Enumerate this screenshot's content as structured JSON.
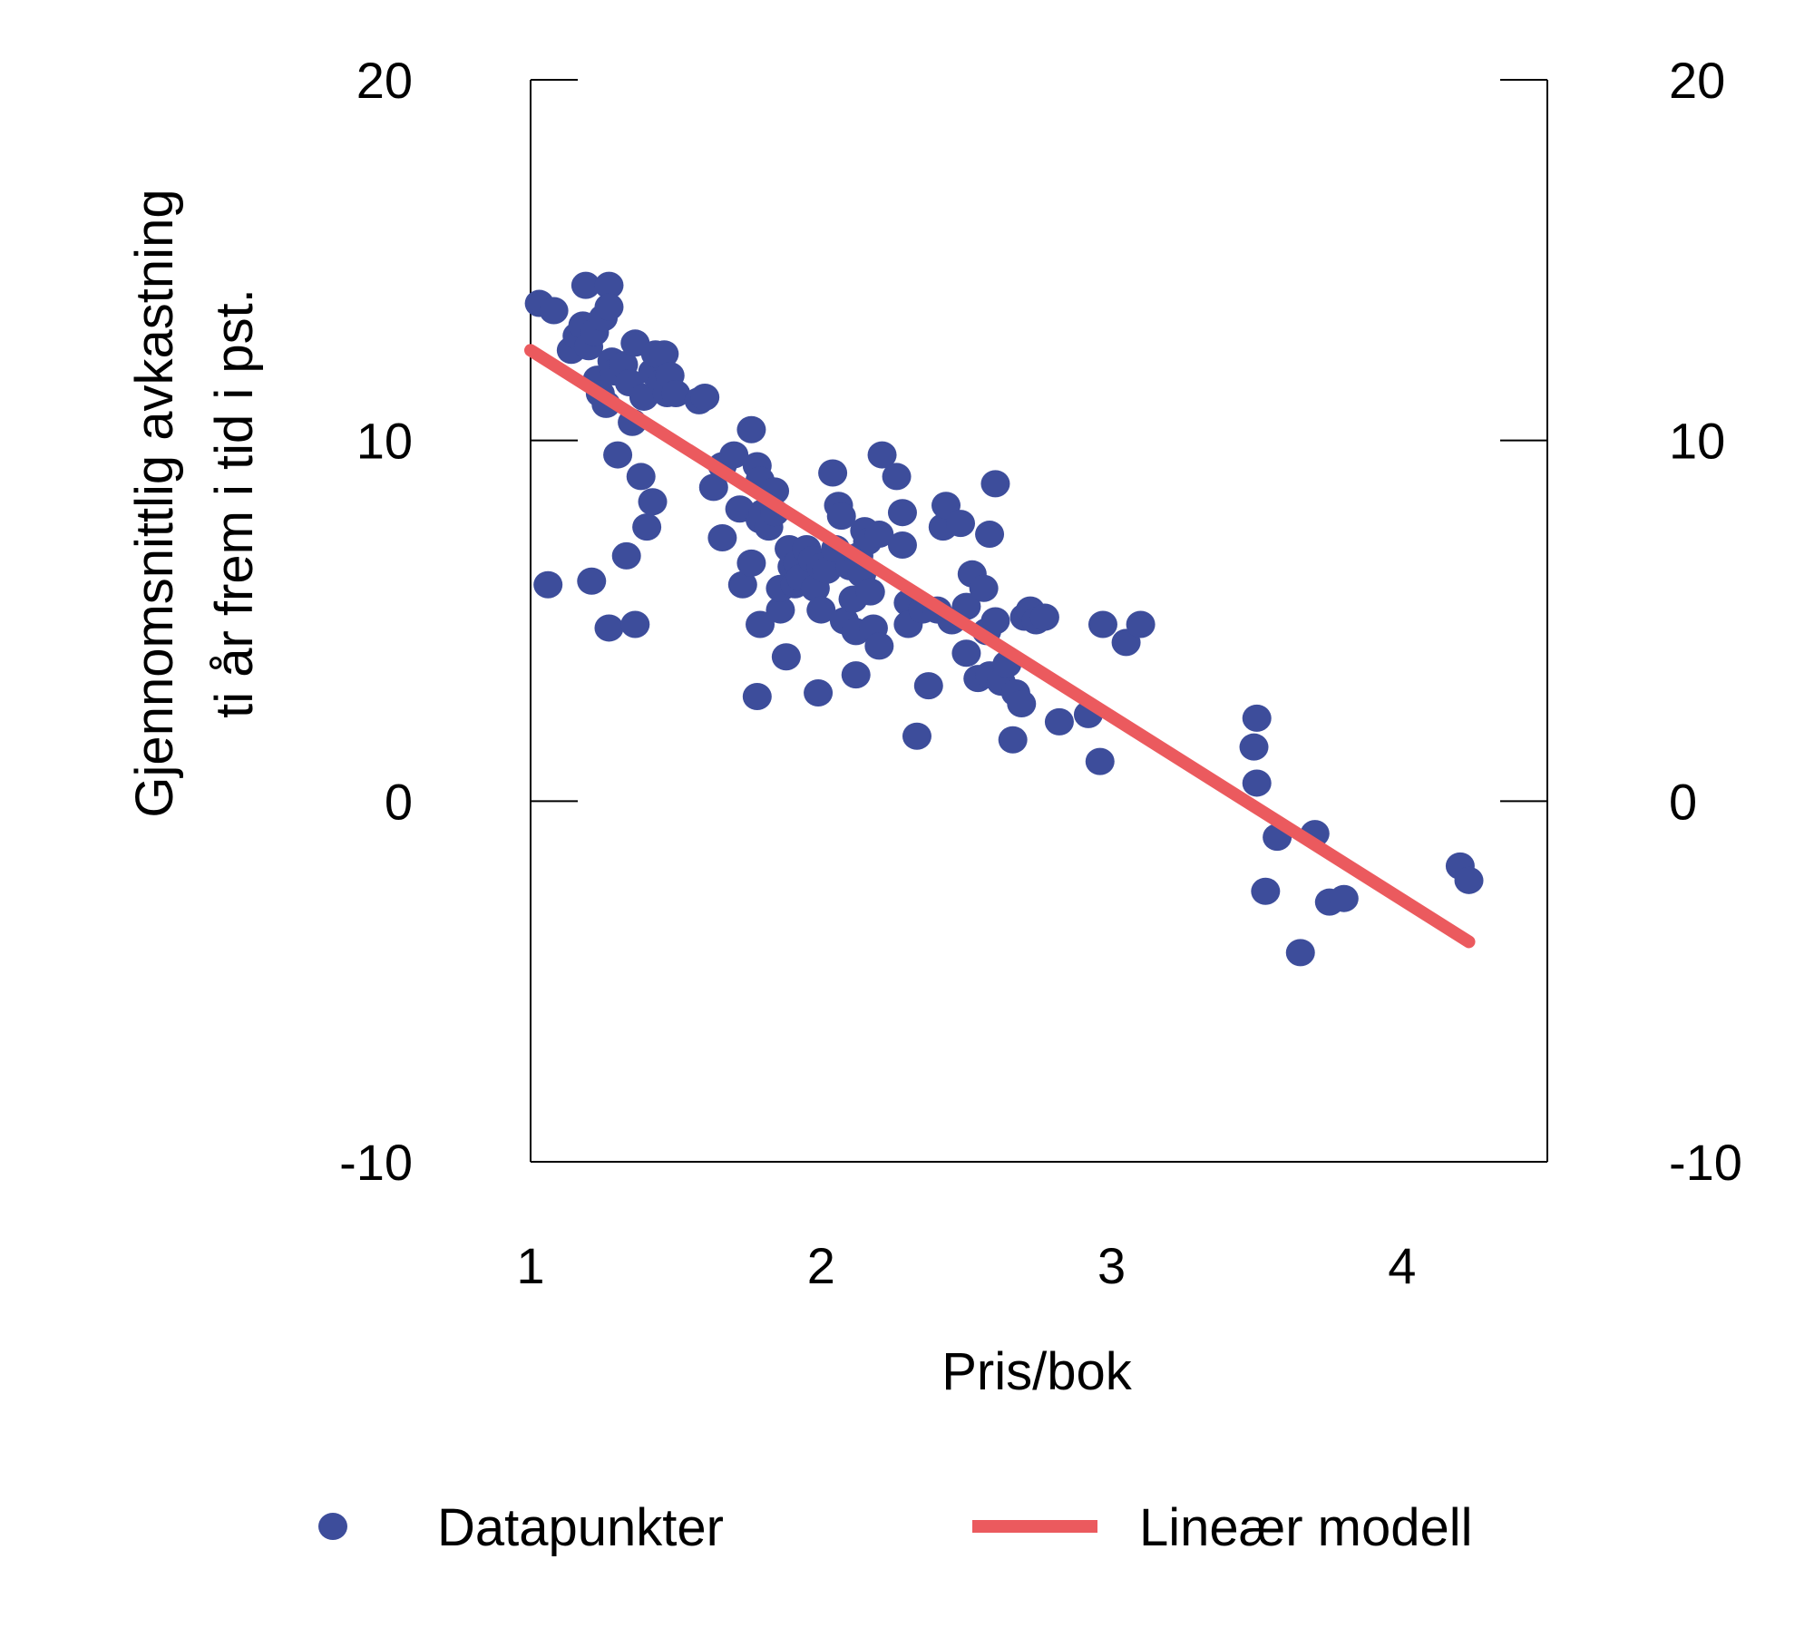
{
  "chart_data": {
    "type": "scatter",
    "title": "",
    "xlabel": "Pris/bok",
    "ylabel_lines": [
      "Gjennomsnittlig avkastning",
      "ti år frem i tid i pst."
    ],
    "xlim": [
      1,
      4.5
    ],
    "ylim": [
      -10,
      20
    ],
    "x_ticks": [
      "1",
      "2",
      "3",
      "4"
    ],
    "y_ticks_left": [
      "20",
      "10",
      "0",
      "-10"
    ],
    "y_ticks_right": [
      "20",
      "10",
      "0",
      "-10"
    ],
    "grid": false,
    "legend_position": "bottom",
    "colors": {
      "points": "#3d4d9b",
      "line": "#eb5a5e",
      "axis": "#000000"
    },
    "series": [
      {
        "name": "Datapunkter",
        "kind": "scatter",
        "points": [
          [
            1.03,
            13.8
          ],
          [
            1.08,
            13.6
          ],
          [
            1.06,
            6.0
          ],
          [
            1.14,
            12.5
          ],
          [
            1.16,
            12.9
          ],
          [
            1.18,
            13.2
          ],
          [
            1.19,
            14.3
          ],
          [
            1.2,
            12.6
          ],
          [
            1.22,
            13.0
          ],
          [
            1.23,
            11.7
          ],
          [
            1.24,
            11.3
          ],
          [
            1.25,
            13.4
          ],
          [
            1.26,
            11.0
          ],
          [
            1.27,
            14.3
          ],
          [
            1.27,
            13.7
          ],
          [
            1.28,
            12.2
          ],
          [
            1.29,
            11.9
          ],
          [
            1.3,
            9.6
          ],
          [
            1.32,
            12.1
          ],
          [
            1.33,
            6.8
          ],
          [
            1.34,
            11.6
          ],
          [
            1.35,
            10.5
          ],
          [
            1.36,
            12.7
          ],
          [
            1.38,
            9.0
          ],
          [
            1.39,
            11.2
          ],
          [
            1.4,
            7.6
          ],
          [
            1.42,
            8.3
          ],
          [
            1.42,
            11.9
          ],
          [
            1.43,
            12.4
          ],
          [
            1.45,
            11.6
          ],
          [
            1.46,
            12.4
          ],
          [
            1.47,
            11.3
          ],
          [
            1.48,
            11.8
          ],
          [
            1.5,
            11.3
          ],
          [
            1.21,
            6.1
          ],
          [
            1.27,
            4.8
          ],
          [
            1.36,
            4.9
          ],
          [
            1.58,
            11.1
          ],
          [
            1.6,
            11.2
          ],
          [
            1.63,
            8.7
          ],
          [
            1.66,
            9.3
          ],
          [
            1.66,
            7.3
          ],
          [
            1.7,
            9.6
          ],
          [
            1.72,
            8.1
          ],
          [
            1.73,
            6.0
          ],
          [
            1.76,
            10.3
          ],
          [
            1.76,
            6.6
          ],
          [
            1.78,
            9.3
          ],
          [
            1.79,
            8.9
          ],
          [
            1.79,
            7.8
          ],
          [
            1.8,
            8.0
          ],
          [
            1.82,
            7.6
          ],
          [
            1.84,
            8.6
          ],
          [
            1.84,
            8.0
          ],
          [
            1.86,
            5.3
          ],
          [
            1.86,
            5.9
          ],
          [
            1.88,
            4.0
          ],
          [
            1.89,
            7.0
          ],
          [
            1.9,
            6.5
          ],
          [
            1.91,
            6.0
          ],
          [
            1.92,
            6.6
          ],
          [
            1.93,
            6.2
          ],
          [
            1.95,
            7.0
          ],
          [
            1.97,
            6.7
          ],
          [
            1.98,
            5.9
          ],
          [
            2.0,
            6.5
          ],
          [
            2.0,
            5.3
          ],
          [
            2.02,
            6.4
          ],
          [
            2.04,
            9.1
          ],
          [
            2.05,
            7.0
          ],
          [
            2.06,
            8.2
          ],
          [
            2.07,
            7.9
          ],
          [
            2.08,
            5.0
          ],
          [
            2.1,
            6.5
          ],
          [
            2.11,
            5.6
          ],
          [
            2.12,
            4.7
          ],
          [
            2.13,
            6.8
          ],
          [
            2.14,
            6.3
          ],
          [
            2.15,
            7.5
          ],
          [
            2.16,
            7.2
          ],
          [
            2.17,
            5.8
          ],
          [
            2.18,
            4.8
          ],
          [
            2.2,
            7.4
          ],
          [
            2.2,
            4.3
          ],
          [
            2.21,
            9.6
          ],
          [
            2.26,
            9.0
          ],
          [
            2.28,
            8.0
          ],
          [
            2.28,
            7.1
          ],
          [
            2.3,
            5.5
          ],
          [
            2.3,
            4.9
          ],
          [
            2.33,
            1.8
          ],
          [
            2.35,
            5.3
          ],
          [
            2.37,
            3.2
          ],
          [
            2.4,
            5.3
          ],
          [
            2.42,
            7.6
          ],
          [
            2.43,
            8.2
          ],
          [
            2.45,
            5.0
          ],
          [
            2.48,
            7.7
          ],
          [
            2.5,
            5.4
          ],
          [
            2.5,
            4.1
          ],
          [
            2.52,
            6.3
          ],
          [
            2.54,
            3.4
          ],
          [
            2.56,
            5.9
          ],
          [
            2.57,
            4.7
          ],
          [
            2.58,
            7.4
          ],
          [
            2.58,
            3.5
          ],
          [
            2.6,
            8.8
          ],
          [
            2.6,
            5.0
          ],
          [
            2.62,
            3.3
          ],
          [
            2.64,
            3.8
          ],
          [
            2.66,
            1.7
          ],
          [
            2.67,
            3.0
          ],
          [
            2.69,
            2.7
          ],
          [
            2.7,
            5.1
          ],
          [
            2.72,
            5.3
          ],
          [
            2.74,
            5.0
          ],
          [
            2.77,
            5.1
          ],
          [
            2.82,
            2.2
          ],
          [
            2.92,
            2.4
          ],
          [
            2.96,
            1.1
          ],
          [
            2.97,
            4.9
          ],
          [
            3.05,
            4.4
          ],
          [
            3.1,
            4.9
          ],
          [
            1.99,
            3.0
          ],
          [
            2.12,
            3.5
          ],
          [
            1.78,
            2.9
          ],
          [
            1.79,
            4.9
          ],
          [
            3.5,
            2.3
          ],
          [
            3.49,
            1.5
          ],
          [
            3.5,
            0.5
          ],
          [
            3.53,
            -2.5
          ],
          [
            3.57,
            -1.0
          ],
          [
            3.65,
            -4.2
          ],
          [
            3.7,
            -0.9
          ],
          [
            3.75,
            -2.8
          ],
          [
            3.8,
            -2.7
          ],
          [
            4.2,
            -1.8
          ],
          [
            4.23,
            -2.2
          ]
        ]
      },
      {
        "name": "Lineær modell",
        "kind": "line",
        "points": [
          [
            1.0,
            12.5
          ],
          [
            4.23,
            -3.9
          ]
        ]
      }
    ]
  }
}
